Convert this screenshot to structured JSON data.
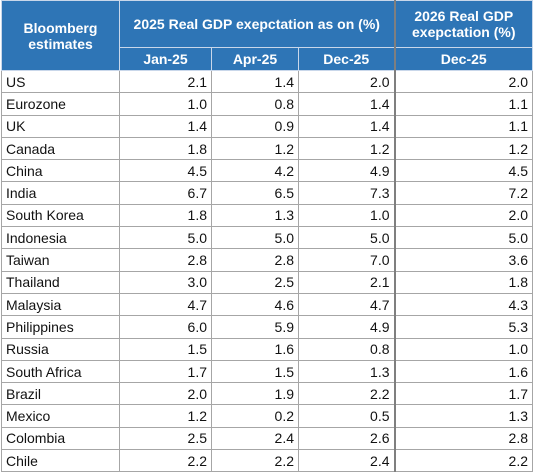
{
  "table": {
    "header": {
      "corner": "Bloomberg estimates",
      "group_2025": "2025 Real GDP exepctation as on (%)",
      "group_2026": "2026 Real GDP exepctation (%)",
      "columns": [
        "Jan-25",
        "Apr-25",
        "Dec-25",
        "Dec-25"
      ]
    },
    "rows": [
      [
        "US",
        "2.1",
        "1.4",
        "2.0",
        "2.0"
      ],
      [
        "Eurozone",
        "1.0",
        "0.8",
        "1.4",
        "1.1"
      ],
      [
        "UK",
        "1.4",
        "0.9",
        "1.4",
        "1.1"
      ],
      [
        "Canada",
        "1.8",
        "1.2",
        "1.2",
        "1.2"
      ],
      [
        "China",
        "4.5",
        "4.2",
        "4.9",
        "4.5"
      ],
      [
        "India",
        "6.7",
        "6.5",
        "7.3",
        "7.2"
      ],
      [
        "South Korea",
        "1.8",
        "1.3",
        "1.0",
        "2.0"
      ],
      [
        "Indonesia",
        "5.0",
        "5.0",
        "5.0",
        "5.0"
      ],
      [
        "Taiwan",
        "2.8",
        "2.8",
        "7.0",
        "3.6"
      ],
      [
        "Thailand",
        "3.0",
        "2.5",
        "2.1",
        "1.8"
      ],
      [
        "Malaysia",
        "4.7",
        "4.6",
        "4.7",
        "4.3"
      ],
      [
        "Philippines",
        "6.0",
        "5.9",
        "4.9",
        "5.3"
      ],
      [
        "Russia",
        "1.5",
        "1.6",
        "0.8",
        "1.0"
      ],
      [
        "South Africa",
        "1.7",
        "1.5",
        "1.3",
        "1.6"
      ],
      [
        "Brazil",
        "2.0",
        "1.9",
        "2.2",
        "1.7"
      ],
      [
        "Mexico",
        "1.2",
        "0.2",
        "0.5",
        "1.3"
      ],
      [
        "Colombia",
        "2.5",
        "2.4",
        "2.6",
        "2.8"
      ],
      [
        "Chile",
        "2.2",
        "2.2",
        "2.4",
        "2.2"
      ]
    ]
  }
}
